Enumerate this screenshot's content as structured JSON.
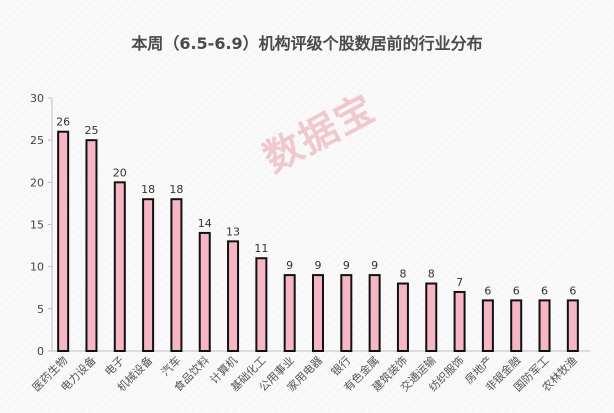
{
  "watermark": "数据宝",
  "colors": {
    "bar_fill": "#f7b6c4",
    "bar_stroke": "#111111",
    "axis": "#bfbfbf"
  },
  "chart_data": {
    "type": "bar",
    "title": "本周（6.5-6.9）机构评级个股数居前的行业分布",
    "xlabel": "",
    "ylabel": "",
    "ylim": [
      0,
      30
    ],
    "yticks": [
      0,
      5,
      10,
      15,
      20,
      25,
      30
    ],
    "grid": false,
    "categories": [
      "医药生物",
      "电力设备",
      "电子",
      "机械设备",
      "汽车",
      "食品饮料",
      "计算机",
      "基础化工",
      "公用事业",
      "家用电器",
      "银行",
      "有色金属",
      "建筑装饰",
      "交通运输",
      "纺织服饰",
      "房地产",
      "非银金融",
      "国防军工",
      "农林牧渔"
    ],
    "values": [
      26,
      25,
      20,
      18,
      18,
      14,
      13,
      11,
      9,
      9,
      9,
      9,
      8,
      8,
      7,
      6,
      6,
      6,
      6
    ]
  }
}
